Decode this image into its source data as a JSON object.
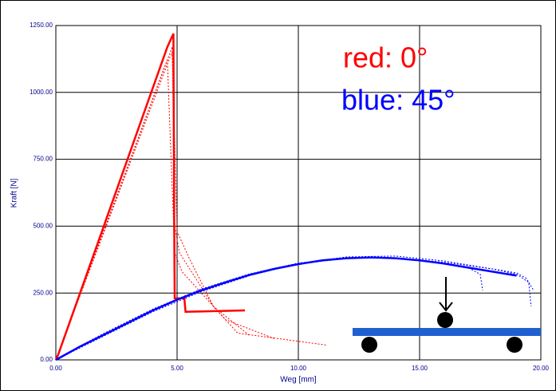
{
  "chart_data": {
    "type": "line",
    "xlabel": "Weg [mm]",
    "ylabel": "Kraft [N]",
    "xlim": [
      0,
      20
    ],
    "ylim": [
      0,
      1250
    ],
    "xticks": [
      {
        "value": 0,
        "label": "0.00"
      },
      {
        "value": 5,
        "label": "5.00"
      },
      {
        "value": 10,
        "label": "10.00"
      },
      {
        "value": 15,
        "label": "15.00"
      },
      {
        "value": 20,
        "label": "20.00"
      }
    ],
    "yticks": [
      {
        "value": 0,
        "label": "0.00"
      },
      {
        "value": 250,
        "label": "250.00"
      },
      {
        "value": 500,
        "label": "500.00"
      },
      {
        "value": 750,
        "label": "750.00"
      },
      {
        "value": 1000,
        "label": "1000.00"
      },
      {
        "value": 1250,
        "label": "1250.00"
      }
    ],
    "grid": true,
    "annotations": [
      {
        "text": "red: 0°",
        "color": "#ff0000"
      },
      {
        "text": "blue: 45°",
        "color": "#0000ff"
      }
    ],
    "series": [
      {
        "color": "#ff0000",
        "linestyle": "dotted",
        "x": [
          0,
          4.7,
          4.8,
          5.0,
          5.5,
          6.5,
          7.5,
          11.2
        ],
        "values": [
          0,
          1130,
          1150,
          480,
          380,
          200,
          100,
          55
        ]
      },
      {
        "color": "#ff0000",
        "linestyle": "dotted",
        "x": [
          0,
          4.5,
          4.6,
          4.9,
          5.2,
          6,
          7,
          9
        ],
        "values": [
          0,
          1100,
          1120,
          400,
          330,
          250,
          150,
          80
        ]
      },
      {
        "color": "#ff0000",
        "linestyle": "dotted",
        "x": [
          0,
          4.8,
          4.9,
          5.1,
          5.8,
          6.5,
          8
        ],
        "values": [
          0,
          1170,
          500,
          400,
          300,
          200,
          90
        ]
      },
      {
        "color": "#ff0000",
        "linestyle": "solid",
        "x": [
          0,
          0.1,
          4.6,
          4.85,
          4.88,
          4.9,
          5.3,
          5.35,
          7.8
        ],
        "values": [
          0,
          20,
          1170,
          1220,
          500,
          230,
          230,
          180,
          185
        ]
      },
      {
        "color": "#0000ff",
        "linestyle": "dotted",
        "x": [
          0,
          1,
          2,
          4,
          6,
          8,
          10,
          12,
          14,
          16,
          18,
          19,
          19.5,
          19.6
        ],
        "values": [
          0,
          45,
          90,
          180,
          255,
          315,
          360,
          385,
          388,
          370,
          340,
          320,
          290,
          200
        ]
      },
      {
        "color": "#0000ff",
        "linestyle": "dotted",
        "x": [
          0,
          1,
          2,
          4,
          6,
          8,
          10,
          12,
          14,
          16,
          17,
          17.5,
          17.6
        ],
        "values": [
          0,
          52,
          100,
          190,
          265,
          322,
          362,
          382,
          380,
          362,
          345,
          320,
          260
        ]
      },
      {
        "color": "#0000ff",
        "linestyle": "dotted",
        "x": [
          0,
          1,
          2,
          4,
          6,
          8,
          10,
          12,
          14,
          16,
          18,
          19,
          19.4,
          19.7
        ],
        "values": [
          0,
          48,
          95,
          185,
          260,
          318,
          358,
          380,
          382,
          365,
          340,
          325,
          305,
          260
        ]
      },
      {
        "color": "#0000ff",
        "linestyle": "solid",
        "x": [
          0,
          0.5,
          1,
          2,
          3,
          4,
          5,
          6,
          7,
          8,
          9,
          10,
          11,
          12,
          13,
          14,
          15,
          16,
          17,
          18,
          19
        ],
        "values": [
          0,
          25,
          50,
          95,
          140,
          185,
          225,
          260,
          290,
          318,
          340,
          358,
          372,
          380,
          383,
          380,
          372,
          360,
          345,
          330,
          315
        ]
      }
    ]
  }
}
